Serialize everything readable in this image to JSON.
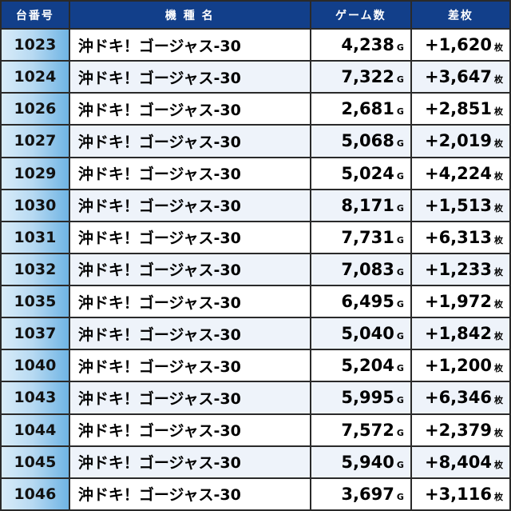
{
  "header": {
    "machine_no": "台番号",
    "model_name": "機 種 名",
    "games": "ゲーム数",
    "difference": "差枚"
  },
  "units": {
    "games": "G",
    "difference": "枚"
  },
  "rows": [
    {
      "no": "1023",
      "name": "沖ドキ！ゴージャス-30",
      "games": "4,238",
      "diff": "+1,620"
    },
    {
      "no": "1024",
      "name": "沖ドキ！ゴージャス-30",
      "games": "7,322",
      "diff": "+3,647"
    },
    {
      "no": "1026",
      "name": "沖ドキ！ゴージャス-30",
      "games": "2,681",
      "diff": "+2,851"
    },
    {
      "no": "1027",
      "name": "沖ドキ！ゴージャス-30",
      "games": "5,068",
      "diff": "+2,019"
    },
    {
      "no": "1029",
      "name": "沖ドキ！ゴージャス-30",
      "games": "5,024",
      "diff": "+4,224"
    },
    {
      "no": "1030",
      "name": "沖ドキ！ゴージャス-30",
      "games": "8,171",
      "diff": "+1,513"
    },
    {
      "no": "1031",
      "name": "沖ドキ！ゴージャス-30",
      "games": "7,731",
      "diff": "+6,313"
    },
    {
      "no": "1032",
      "name": "沖ドキ！ゴージャス-30",
      "games": "7,083",
      "diff": "+1,233"
    },
    {
      "no": "1035",
      "name": "沖ドキ！ゴージャス-30",
      "games": "6,495",
      "diff": "+1,972"
    },
    {
      "no": "1037",
      "name": "沖ドキ！ゴージャス-30",
      "games": "5,040",
      "diff": "+1,842"
    },
    {
      "no": "1040",
      "name": "沖ドキ！ゴージャス-30",
      "games": "5,204",
      "diff": "+1,200"
    },
    {
      "no": "1043",
      "name": "沖ドキ！ゴージャス-30",
      "games": "5,995",
      "diff": "+6,346"
    },
    {
      "no": "1044",
      "name": "沖ドキ！ゴージャス-30",
      "games": "7,572",
      "diff": "+2,379"
    },
    {
      "no": "1045",
      "name": "沖ドキ！ゴージャス-30",
      "games": "5,940",
      "diff": "+8,404"
    },
    {
      "no": "1046",
      "name": "沖ドキ！ゴージャス-30",
      "games": "3,697",
      "diff": "+3,116"
    }
  ]
}
